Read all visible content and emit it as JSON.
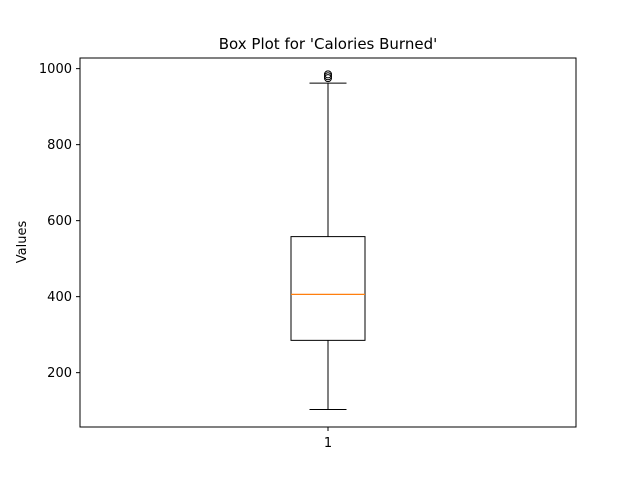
{
  "chart_data": {
    "type": "box",
    "title": "Box Plot for 'Calories Burned'",
    "xlabel": "",
    "ylabel": "Values",
    "ylim": [
      57,
      1028
    ],
    "y_ticks": [
      200,
      400,
      600,
      800,
      1000
    ],
    "categories": [
      "1"
    ],
    "boxes": [
      {
        "category": "1",
        "whisker_low": 103,
        "q1": 285,
        "median": 406,
        "q3": 558,
        "whisker_high": 962,
        "outliers": [
          975,
          980,
          985
        ]
      }
    ],
    "grid": false,
    "median_color": "#ff7f0e",
    "box_color": "#000000",
    "flier_color": "#000000"
  }
}
